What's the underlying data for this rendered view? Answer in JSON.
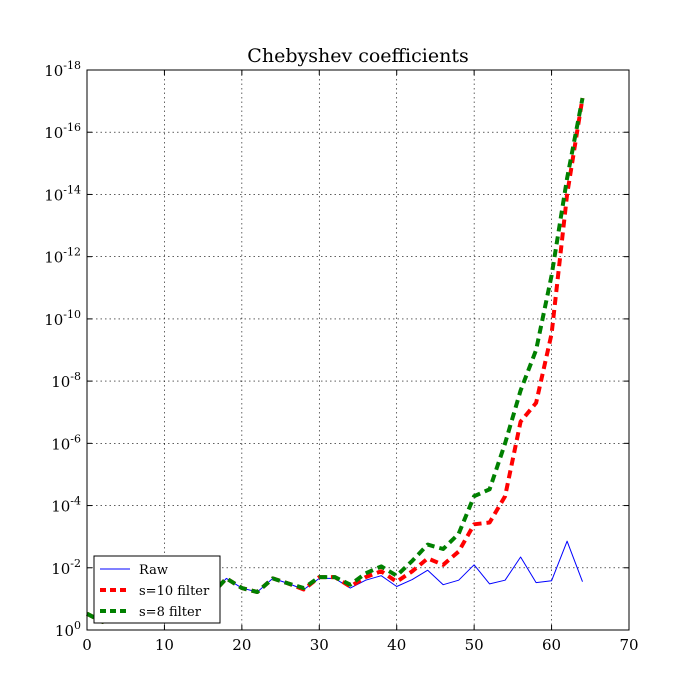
{
  "chart_data": {
    "type": "line",
    "title": "Chebyshev coefficients",
    "xlabel": "",
    "ylabel": "",
    "xlim": [
      0,
      70
    ],
    "xticks": [
      0,
      10,
      20,
      30,
      40,
      50,
      60,
      70
    ],
    "ylog": true,
    "ylim_exp": [
      -18,
      0
    ],
    "yticks_exp": [
      0,
      -2,
      -4,
      -6,
      -8,
      -10,
      -12,
      -14,
      -16,
      -18
    ],
    "grid": true,
    "legend_position": "lower-left",
    "series": [
      {
        "name": "Raw",
        "color": "#0000ff",
        "style": "solid",
        "x": [
          0,
          2,
          4,
          6,
          8,
          10,
          12,
          14,
          16,
          18,
          20,
          22,
          24,
          26,
          28,
          30,
          32,
          34,
          36,
          38,
          40,
          42,
          44,
          46,
          48,
          50,
          52,
          54,
          56,
          58,
          60,
          62,
          64
        ],
        "y": [
          0.3,
          0.55,
          0.28,
          0.02,
          0.12,
          0.11,
          0.022,
          0.07,
          0.075,
          0.022,
          0.045,
          0.06,
          0.022,
          0.032,
          0.05,
          0.022,
          0.022,
          0.045,
          0.025,
          0.018,
          0.04,
          0.024,
          0.012,
          0.035,
          0.025,
          0.008,
          0.033,
          0.025,
          0.0045,
          0.03,
          0.026,
          0.0014,
          0.028
        ]
      },
      {
        "name": "s=10 filter",
        "color": "#ff0000",
        "style": "dashed",
        "x": [
          0,
          2,
          4,
          6,
          8,
          10,
          12,
          14,
          16,
          18,
          20,
          22,
          24,
          26,
          28,
          30,
          32,
          34,
          36,
          38,
          40,
          42,
          44,
          46,
          48,
          50,
          52,
          54,
          56,
          58,
          60,
          62,
          64
        ],
        "y": [
          0.3,
          0.55,
          0.28,
          0.02,
          0.12,
          0.11,
          0.022,
          0.07,
          0.075,
          0.022,
          0.045,
          0.06,
          0.022,
          0.032,
          0.05,
          0.02,
          0.02,
          0.04,
          0.02,
          0.013,
          0.028,
          0.013,
          0.005,
          0.008,
          0.003,
          0.0004,
          0.00035,
          5e-05,
          2e-07,
          5e-08,
          3e-10,
          1e-14,
          8e-18
        ]
      },
      {
        "name": "s=8 filter",
        "color": "#008000",
        "style": "dashed",
        "x": [
          0,
          2,
          4,
          6,
          8,
          10,
          12,
          14,
          16,
          18,
          20,
          22,
          24,
          26,
          28,
          30,
          32,
          34,
          36,
          38,
          40,
          42,
          44,
          46,
          48,
          50,
          52,
          54,
          56,
          58,
          60,
          62,
          64
        ],
        "y": [
          0.3,
          0.55,
          0.28,
          0.02,
          0.12,
          0.11,
          0.022,
          0.07,
          0.075,
          0.022,
          0.045,
          0.06,
          0.022,
          0.032,
          0.045,
          0.02,
          0.02,
          0.035,
          0.015,
          0.009,
          0.018,
          0.006,
          0.0018,
          0.0025,
          0.0008,
          5e-05,
          3e-05,
          1e-06,
          2e-08,
          1e-09,
          4e-12,
          3e-15,
          8e-18
        ]
      }
    ]
  }
}
